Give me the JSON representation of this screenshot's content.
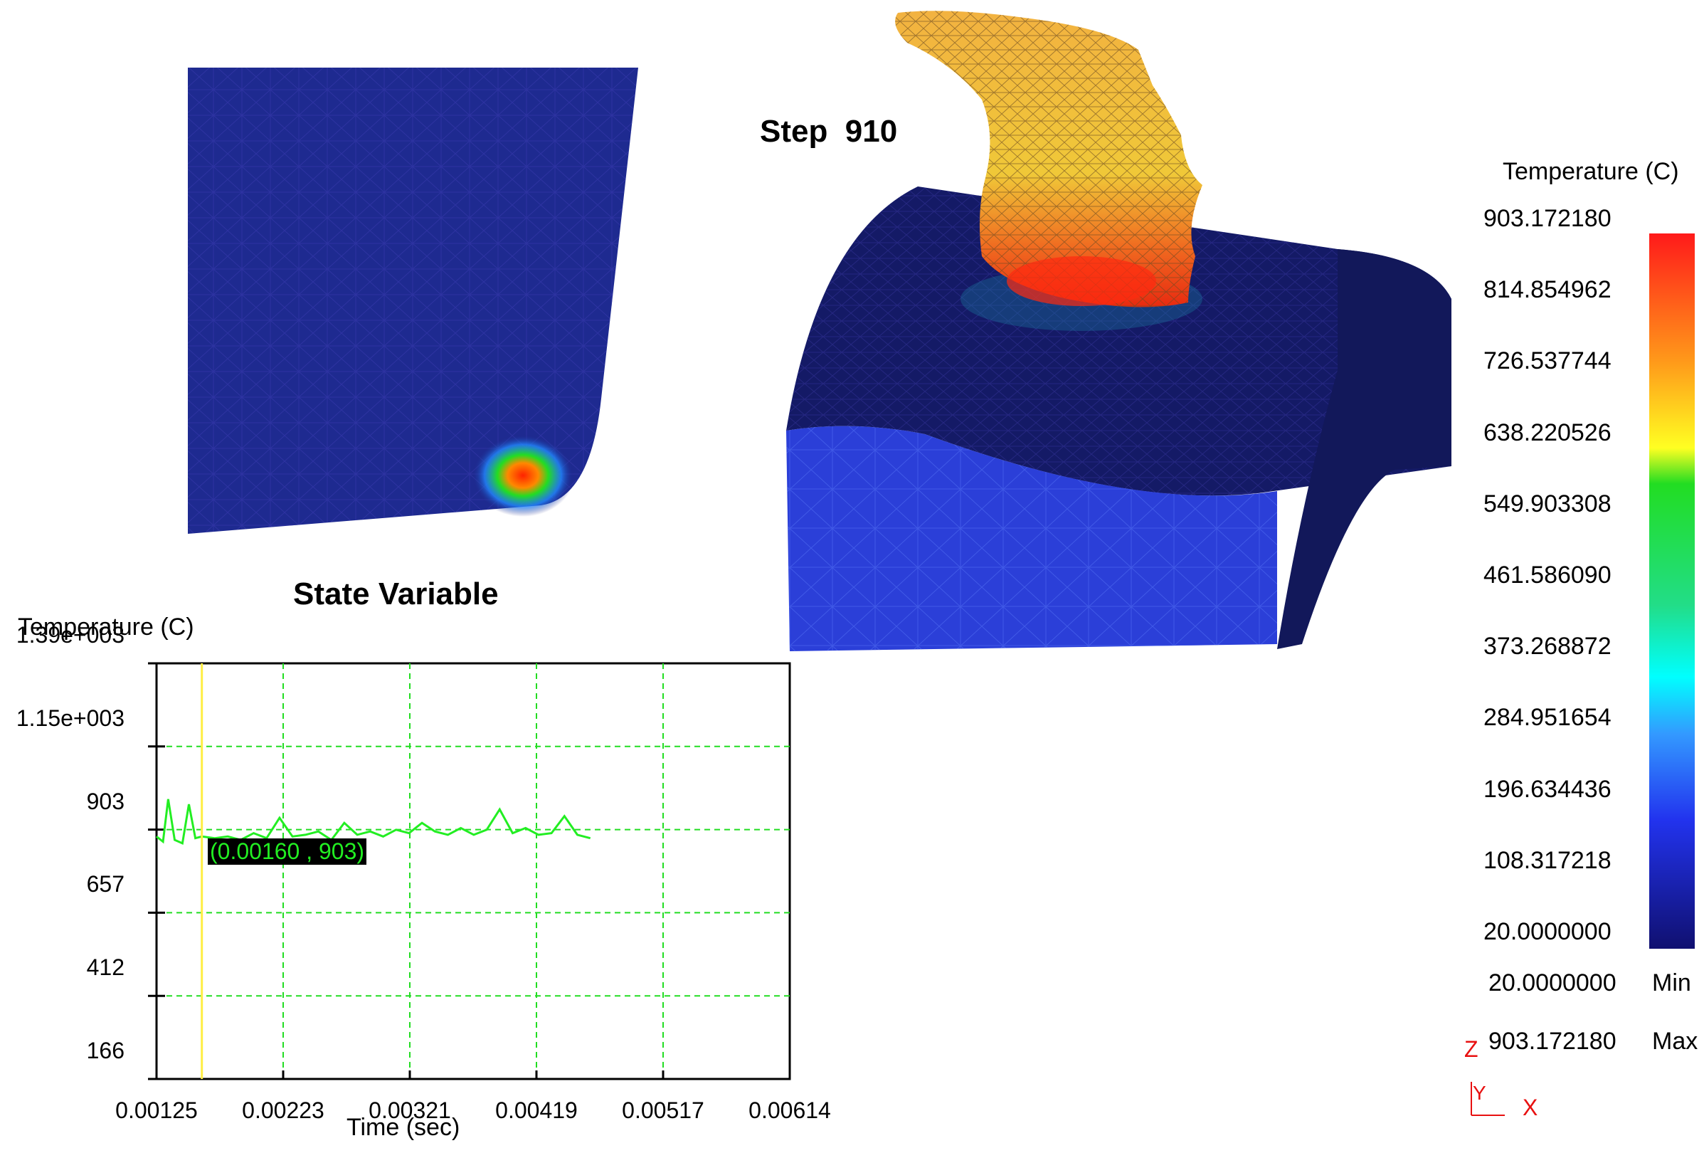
{
  "viewer": {
    "step_label": "Step  910"
  },
  "plot": {
    "title": "State Variable",
    "y_axis_label": "Temperature (C)",
    "x_axis_label": "Time (sec)",
    "y_ticks": [
      "1.39e+003",
      "1.15e+003",
      "903",
      "657",
      "412",
      "166"
    ],
    "x_ticks": [
      "0.00125",
      "0.00223",
      "0.00321",
      "0.00419",
      "0.00517",
      "0.00614"
    ],
    "cursor_readout": "(0.00160 , 903)",
    "colors": {
      "curve": "#22ee22",
      "grid": "#22dd22",
      "cursor": "#ffee44",
      "readout_bg": "#000000"
    }
  },
  "chart_data": {
    "type": "line",
    "title": "State Variable",
    "xlabel": "Time (sec)",
    "ylabel": "Temperature (C)",
    "xlim": [
      0.00125,
      0.00614
    ],
    "ylim": [
      166,
      1390
    ],
    "grid": true,
    "cursor": {
      "x": 0.0016,
      "y": 903
    },
    "series": [
      {
        "x": [
          0.00125,
          0.0013,
          0.00134,
          0.00139,
          0.00145,
          0.0015,
          0.00155,
          0.0016,
          0.0017,
          0.0018,
          0.0019,
          0.002,
          0.0021,
          0.0022,
          0.0023,
          0.0024,
          0.0025,
          0.0026,
          0.0027,
          0.0028,
          0.0029,
          0.003,
          0.0031,
          0.0032,
          0.0033,
          0.0034,
          0.0035,
          0.0036,
          0.0037,
          0.0038,
          0.0039,
          0.004,
          0.0041,
          0.0042,
          0.0043,
          0.0044,
          0.0045,
          0.0046
        ],
        "y": [
          880,
          865,
          990,
          870,
          860,
          975,
          875,
          880,
          875,
          880,
          870,
          890,
          875,
          935,
          880,
          885,
          895,
          870,
          920,
          885,
          895,
          880,
          900,
          890,
          920,
          895,
          885,
          905,
          885,
          900,
          960,
          890,
          905,
          885,
          890,
          940,
          885,
          875
        ]
      }
    ]
  },
  "legend": {
    "title": "Temperature (C)",
    "values": [
      "903.172180",
      "814.854962",
      "726.537744",
      "638.220526",
      "549.903308",
      "461.586090",
      "373.268872",
      "284.951654",
      "196.634436",
      "108.317218",
      "20.0000000"
    ],
    "min_value": "20.0000000",
    "min_label": "Min",
    "max_value": "903.172180",
    "max_label": "Max"
  },
  "triad": {
    "z_label": "Z",
    "y_label": "Y",
    "x_label": "X",
    "color": "#e81010"
  }
}
